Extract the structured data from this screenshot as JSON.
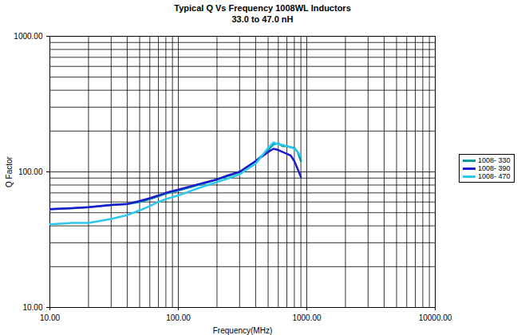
{
  "chart_data": {
    "type": "line",
    "title": "Typical Q Vs Frequency 1008WL Inductors",
    "subtitle": "33.0 to 47.0 nH",
    "x_label": "Frequency(MHz)",
    "y_label": "Q Factor",
    "log": true,
    "grid": true,
    "legend": "right",
    "xlim": [
      10,
      10000
    ],
    "ylim": [
      10,
      1000
    ],
    "xticks": [
      {
        "value": 10,
        "label": "10.00"
      },
      {
        "value": 100,
        "label": "100.00"
      },
      {
        "value": 1000,
        "label": "1000.00"
      },
      {
        "value": 10000,
        "label": "10000.00"
      }
    ],
    "yticks": [
      {
        "value": 10,
        "label": "10.00"
      },
      {
        "value": 100,
        "label": "100.00"
      },
      {
        "value": 1000,
        "label": "1000.00"
      }
    ],
    "x": [
      10,
      15,
      20,
      30,
      40,
      50,
      60,
      70,
      80,
      100,
      150,
      200,
      250,
      300,
      400,
      500,
      550,
      600,
      650,
      700,
      750,
      800,
      850,
      900
    ],
    "series": [
      {
        "name": "1008- 330",
        "color": "#00999c",
        "values": [
          53,
          54,
          55,
          57,
          58,
          60,
          63,
          66,
          69,
          73,
          81,
          88,
          94,
          100,
          120,
          145,
          160,
          162,
          155,
          155,
          152,
          150,
          140,
          120
        ]
      },
      {
        "name": "1008- 390",
        "color": "#1c1ccc",
        "values": [
          53,
          54,
          55,
          57,
          58,
          61,
          64,
          67,
          70,
          74,
          82,
          88,
          95,
          100,
          120,
          140,
          148,
          145,
          140,
          136,
          132,
          120,
          105,
          92
        ]
      },
      {
        "name": "1008- 470",
        "color": "#2cc8ee",
        "values": [
          41,
          42,
          42,
          45,
          48,
          52,
          56,
          60,
          63,
          67,
          77,
          84,
          90,
          96,
          115,
          150,
          165,
          160,
          158,
          155,
          152,
          148,
          140,
          130
        ]
      }
    ]
  }
}
